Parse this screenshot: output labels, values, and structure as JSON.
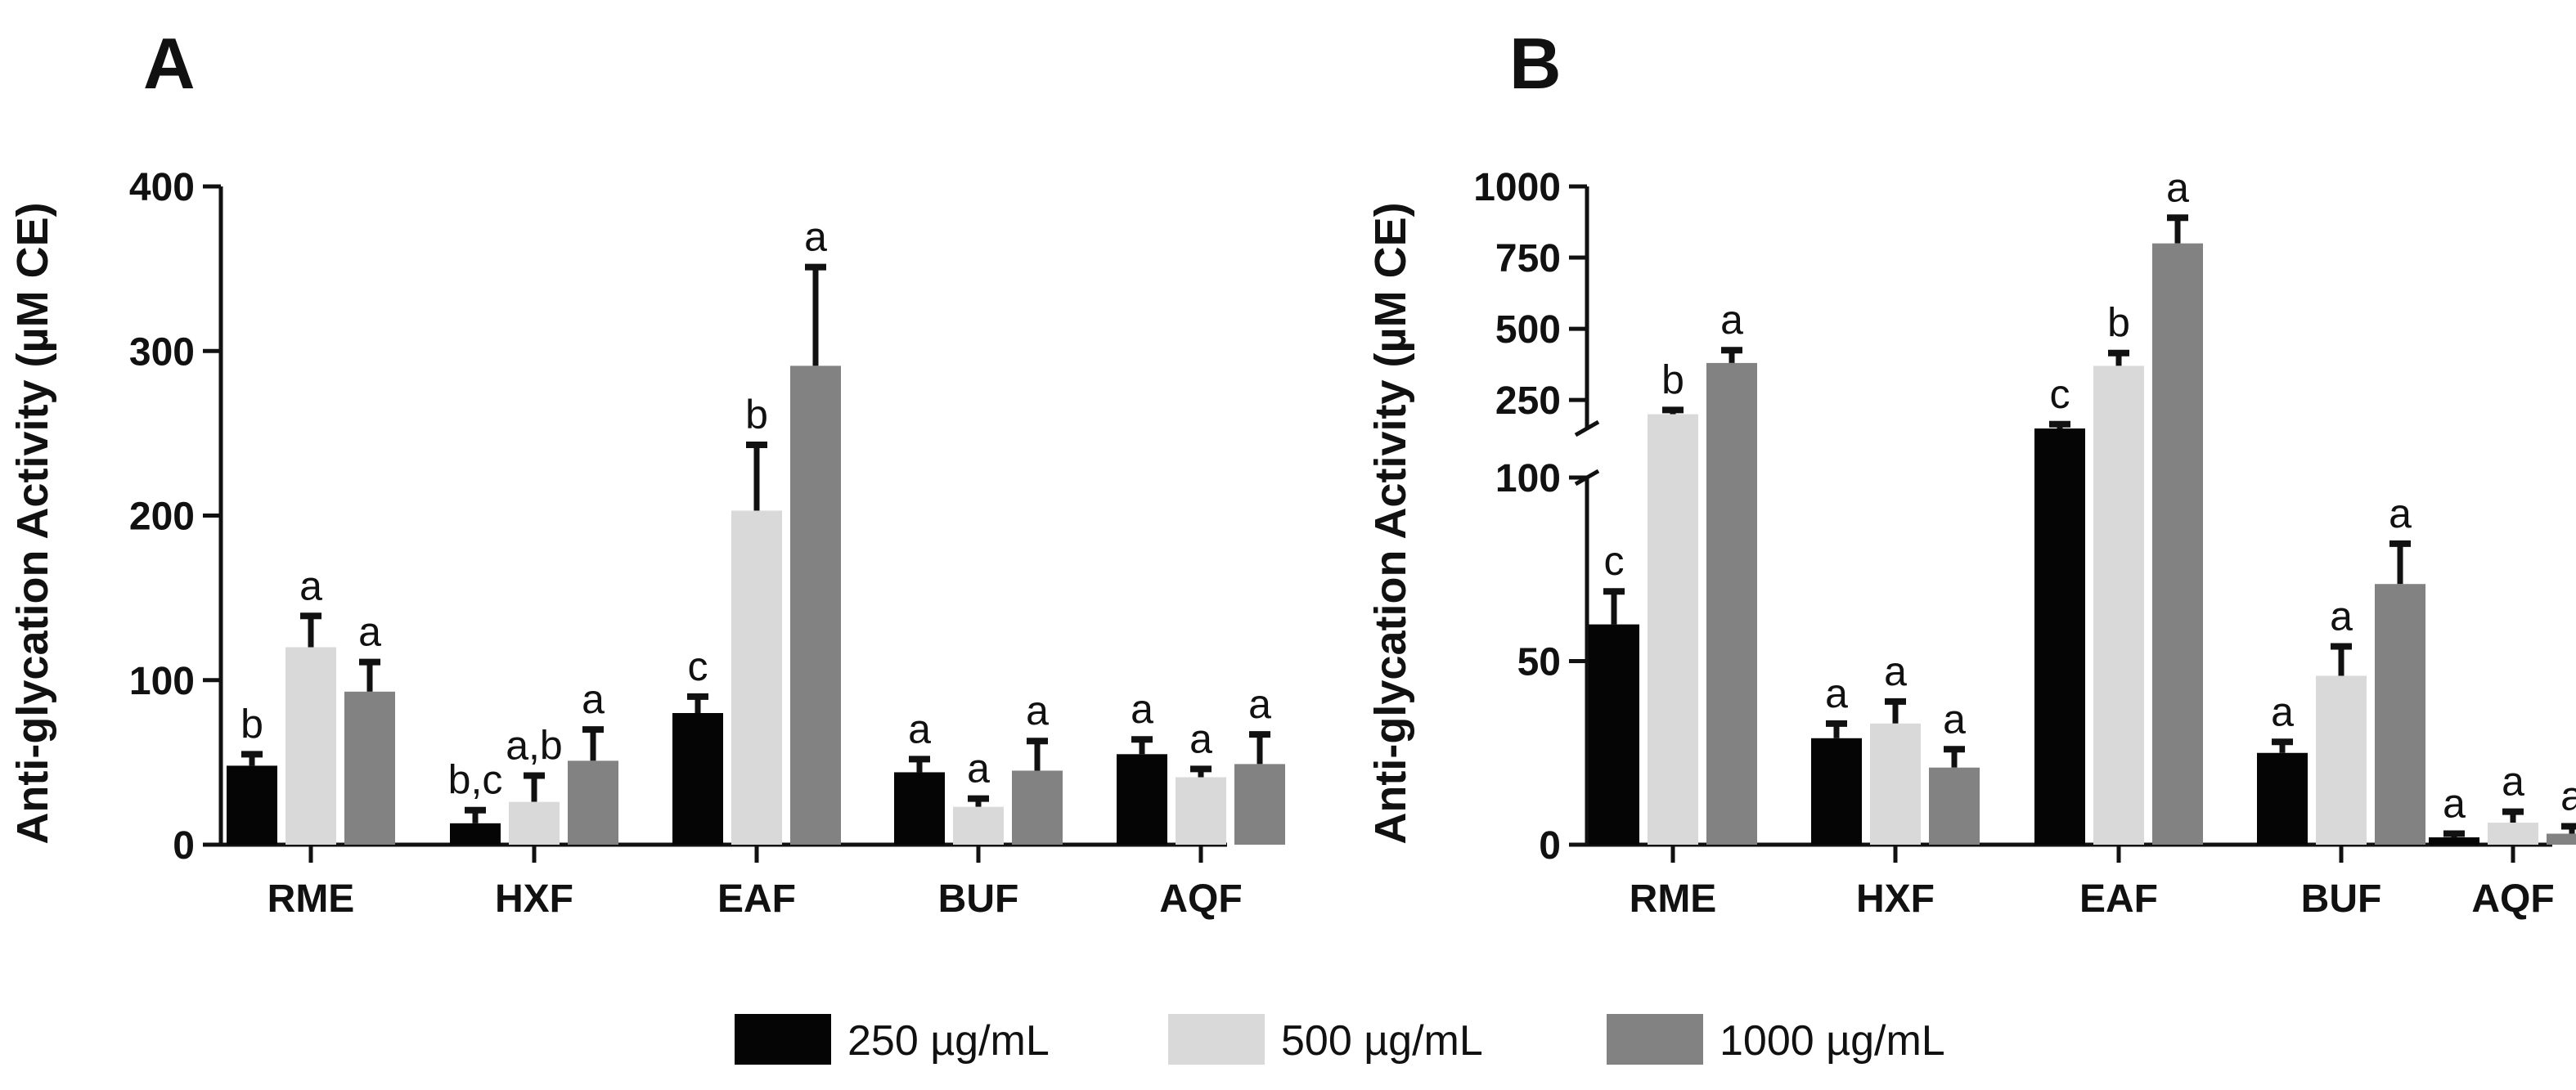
{
  "chart_data": [
    {
      "type": "bar",
      "panel": "A",
      "ylabel": "Anti-glycation Activity (µM CE)",
      "categories": [
        "RME",
        "HXF",
        "EAF",
        "BUF",
        "AQF"
      ],
      "ylim": [
        0,
        400
      ],
      "yticks": [
        "0",
        "100",
        "200",
        "300",
        "400"
      ],
      "series": [
        {
          "name": "250 µg/mL",
          "color": "#050505",
          "values": [
            48,
            13,
            80,
            44,
            55
          ],
          "errors": [
            7,
            8,
            10,
            8,
            9
          ],
          "labels": [
            "b",
            "b,c",
            "c",
            "a",
            "a"
          ]
        },
        {
          "name": "500 µg/mL",
          "color": "#d9d9d9",
          "values": [
            120,
            26,
            203,
            23,
            41
          ],
          "errors": [
            19,
            16,
            40,
            5,
            5
          ],
          "labels": [
            "a",
            "a,b",
            "b",
            "a",
            "a"
          ]
        },
        {
          "name": "1000 µg/mL",
          "color": "#828282",
          "values": [
            93,
            51,
            291,
            45,
            49
          ],
          "errors": [
            18,
            19,
            60,
            18,
            18
          ],
          "labels": [
            "a",
            "a",
            "a",
            "a",
            "a"
          ]
        }
      ]
    },
    {
      "type": "bar",
      "panel": "B",
      "ylabel": "Anti-glycation Activity (µM CE)",
      "categories": [
        "RME",
        "HXF",
        "EAF",
        "BUF",
        "AQF"
      ],
      "axis_break": true,
      "lower_ylim": [
        0,
        100
      ],
      "upper_ylim": [
        150,
        1000
      ],
      "lower_yticks": [
        "0",
        "50",
        "100"
      ],
      "upper_yticks": [
        "250",
        "500",
        "750",
        "1000"
      ],
      "series": [
        {
          "name": "250 µg/mL",
          "color": "#050505",
          "values": [
            60,
            29,
            150,
            25,
            2
          ],
          "errors": [
            9,
            4,
            15,
            3,
            1
          ],
          "labels": [
            "c",
            "a",
            "c",
            "a",
            "a"
          ]
        },
        {
          "name": "500 µg/mL",
          "color": "#d9d9d9",
          "values": [
            200,
            33,
            370,
            46,
            6
          ],
          "errors": [
            15,
            6,
            45,
            8,
            3
          ],
          "labels": [
            "b",
            "a",
            "b",
            "a",
            "a"
          ]
        },
        {
          "name": "1000 µg/mL",
          "color": "#828282",
          "values": [
            380,
            21,
            800,
            71,
            3
          ],
          "errors": [
            45,
            5,
            90,
            11,
            2
          ],
          "labels": [
            "a",
            "a",
            "a",
            "a",
            "a"
          ]
        }
      ]
    }
  ],
  "legend": [
    {
      "label": "250 µg/mL",
      "color": "#050505"
    },
    {
      "label": "500 µg/mL",
      "color": "#d9d9d9"
    },
    {
      "label": "1000 µg/mL",
      "color": "#828282"
    }
  ]
}
